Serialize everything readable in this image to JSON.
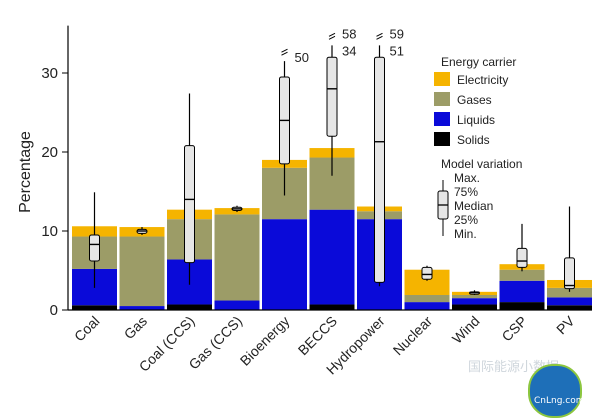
{
  "chart_data": {
    "type": "bar",
    "stacked": true,
    "ylabel": "Percentage",
    "ylim": [
      0,
      36
    ],
    "yticks": [
      0,
      10,
      20,
      30
    ],
    "categories": [
      "Coal",
      "Gas",
      "Coal (CCS)",
      "Gas (CCS)",
      "Bioenergy",
      "BECCS",
      "Hydropower",
      "Nuclear",
      "Wind",
      "CSP",
      "PV"
    ],
    "series": [
      {
        "name": "Solids",
        "color": "#000000",
        "values": [
          0.6,
          0.0,
          0.7,
          0.0,
          0.0,
          0.7,
          0.0,
          0.0,
          0.7,
          1.0,
          0.6
        ]
      },
      {
        "name": "Liquids",
        "color": "#0a0ad9",
        "values": [
          4.6,
          0.5,
          5.7,
          1.2,
          11.5,
          12.0,
          11.5,
          1.0,
          0.8,
          2.7,
          1.0
        ]
      },
      {
        "name": "Gases",
        "color": "#9c9c67",
        "values": [
          4.1,
          8.8,
          5.1,
          10.9,
          6.5,
          6.6,
          1.0,
          0.9,
          0.4,
          1.4,
          1.2
        ]
      },
      {
        "name": "Electricity",
        "color": "#f5b400",
        "values": [
          1.3,
          1.2,
          1.2,
          0.8,
          1.0,
          1.2,
          0.6,
          3.2,
          0.4,
          0.7,
          1.0
        ]
      }
    ],
    "model_variation": [
      {
        "category": "Coal",
        "min": 2.8,
        "q25": 6.2,
        "median": 8.3,
        "q75": 9.5,
        "max": 14.9
      },
      {
        "category": "Gas",
        "min": 9.5,
        "q25": 9.7,
        "median": 10.0,
        "q75": 10.2,
        "max": 10.5
      },
      {
        "category": "Coal (CCS)",
        "min": 3.2,
        "q25": 6.0,
        "median": 14.0,
        "q75": 20.8,
        "max": 27.4
      },
      {
        "category": "Gas (CCS)",
        "min": 12.4,
        "q25": 12.6,
        "median": 12.8,
        "q75": 13.0,
        "max": 13.2
      },
      {
        "category": "Bioenergy",
        "min": 14.5,
        "q25": 18.5,
        "median": 24.0,
        "q75": 29.5,
        "max": 31.5,
        "outlier_label": "50"
      },
      {
        "category": "BECCS",
        "min": 17.0,
        "q25": 22.0,
        "median": 28.0,
        "q75": 32.0,
        "max": 33.5,
        "outlier_label": "58",
        "outlier_label_2": "34"
      },
      {
        "category": "Hydropower",
        "min": 3.0,
        "q25": 3.5,
        "median": 21.3,
        "q75": 32.0,
        "max": 33.5,
        "outlier_label": "59",
        "outlier_label_2": "51"
      },
      {
        "category": "Nuclear",
        "min": 3.7,
        "q25": 3.9,
        "median": 4.5,
        "q75": 5.4,
        "max": 5.6
      },
      {
        "category": "Wind",
        "min": 1.9,
        "q25": 2.0,
        "median": 2.2,
        "q75": 2.3,
        "max": 2.5
      },
      {
        "category": "CSP",
        "min": 4.9,
        "q25": 5.4,
        "median": 6.2,
        "q75": 7.8,
        "max": 10.9
      },
      {
        "category": "PV",
        "min": 2.3,
        "q25": 2.7,
        "median": 3.1,
        "q75": 6.6,
        "max": 13.1
      }
    ],
    "legend": {
      "title": "Energy carrier",
      "placement": "top-right",
      "items": [
        "Electricity",
        "Gases",
        "Liquids",
        "Solids"
      ]
    },
    "variation_legend": {
      "title": "Model variation",
      "labels": [
        "Max.",
        "75%",
        "Median",
        "25%",
        "Min."
      ]
    },
    "grid": false
  },
  "watermark": {
    "text": "国际能源小数据",
    "logo_text": "CnLng.com"
  }
}
